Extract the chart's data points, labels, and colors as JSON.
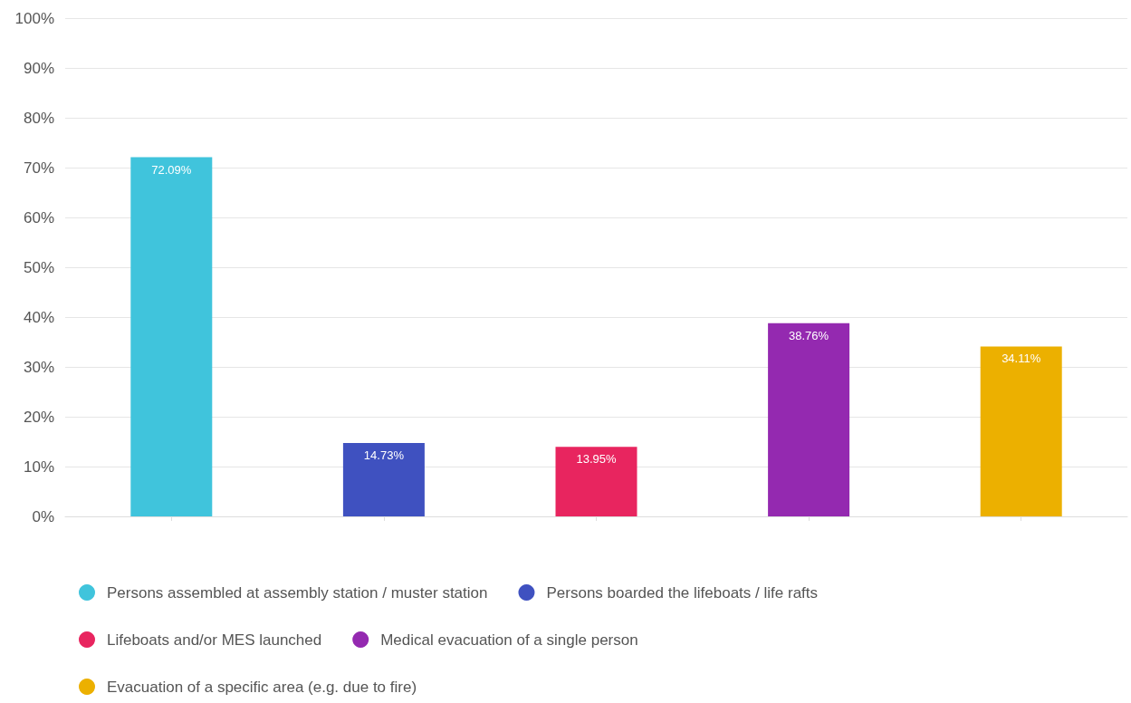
{
  "chart_data": {
    "type": "bar",
    "stacked": true,
    "categories": [
      null,
      null,
      null,
      null,
      null
    ],
    "series": [
      {
        "name": "Persons assembled at assembly station / muster station",
        "color": "#40c4dc",
        "values": [
          72.09,
          null,
          null,
          null,
          null
        ],
        "value_labels": [
          "72.09%",
          null,
          null,
          null,
          null
        ]
      },
      {
        "name": "Persons boarded the lifeboats / life rafts",
        "color": "#3f51c0",
        "values": [
          null,
          14.73,
          null,
          null,
          null
        ],
        "value_labels": [
          null,
          "14.73%",
          null,
          null,
          null
        ]
      },
      {
        "name": "Lifeboats and/or MES launched",
        "color": "#e8255f",
        "values": [
          null,
          null,
          13.95,
          null,
          null
        ],
        "value_labels": [
          null,
          null,
          "13.95%",
          null,
          null
        ]
      },
      {
        "name": "Medical evacuation of a single person",
        "color": "#9429b0",
        "values": [
          null,
          null,
          null,
          38.76,
          null
        ],
        "value_labels": [
          null,
          null,
          null,
          "38.76%",
          null
        ]
      },
      {
        "name": "Evacuation of a specific area (e.g. due to fire)",
        "color": "#ecb000",
        "values": [
          null,
          null,
          null,
          null,
          34.11
        ],
        "value_labels": [
          null,
          null,
          null,
          null,
          "34.11%"
        ]
      }
    ],
    "ylim": [
      0,
      100
    ],
    "yticks": [
      {
        "value": 0,
        "label": "0%"
      },
      {
        "value": 10,
        "label": "10%"
      },
      {
        "value": 20,
        "label": "20%"
      },
      {
        "value": 30,
        "label": "30%"
      },
      {
        "value": 40,
        "label": "40%"
      },
      {
        "value": 50,
        "label": "50%"
      },
      {
        "value": 60,
        "label": "60%"
      },
      {
        "value": 70,
        "label": "70%"
      },
      {
        "value": 80,
        "label": "80%"
      },
      {
        "value": 90,
        "label": "90%"
      },
      {
        "value": 100,
        "label": "100%"
      }
    ],
    "grid": "y",
    "legend": "bottom",
    "tick_labels": "y"
  }
}
